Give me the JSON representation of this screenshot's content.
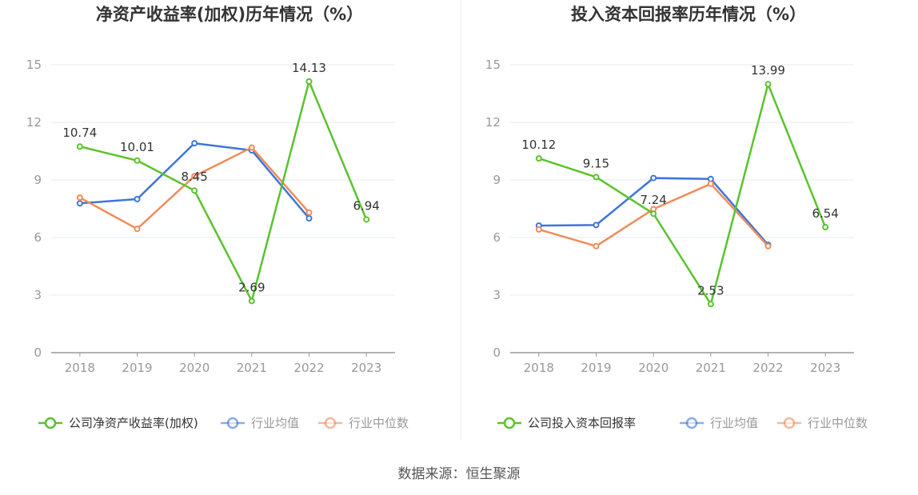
{
  "chart_data": [
    {
      "type": "line",
      "title": "净资产收益率(加权)历年情况（%）",
      "categories": [
        "2018",
        "2019",
        "2020",
        "2021",
        "2022",
        "2023"
      ],
      "ylim": [
        0,
        15
      ],
      "yticks": [
        0,
        3,
        6,
        9,
        12,
        15
      ],
      "grid": true,
      "legend_position": "bottom",
      "series": [
        {
          "name": "公司净资产收益率(加权)",
          "color": "#5ac32e",
          "values": [
            10.74,
            10.01,
            8.45,
            2.69,
            14.13,
            6.94
          ],
          "labels": [
            "10.74",
            "10.01",
            "8.45",
            "2.69",
            "14.13",
            "6.94"
          ]
        },
        {
          "name": "行业均值",
          "color": "#3e75db",
          "values": [
            7.78,
            8.0,
            10.91,
            10.54,
            7.0,
            null
          ]
        },
        {
          "name": "行业中位数",
          "color": "#f08c5a",
          "values": [
            8.08,
            6.45,
            9.2,
            10.69,
            7.3,
            null
          ]
        }
      ]
    },
    {
      "type": "line",
      "title": "投入资本回报率历年情况（%）",
      "categories": [
        "2018",
        "2019",
        "2020",
        "2021",
        "2022",
        "2023"
      ],
      "ylim": [
        0,
        15
      ],
      "yticks": [
        0,
        3,
        6,
        9,
        12,
        15
      ],
      "grid": true,
      "legend_position": "bottom",
      "series": [
        {
          "name": "公司投入资本回报率",
          "color": "#5ac32e",
          "values": [
            10.12,
            9.15,
            7.24,
            2.53,
            13.99,
            6.54
          ],
          "labels": [
            "10.12",
            "9.15",
            "7.24",
            "2.53",
            "13.99",
            "6.54"
          ]
        },
        {
          "name": "行业均值",
          "color": "#3e75db",
          "values": [
            6.62,
            6.65,
            9.1,
            9.05,
            5.62,
            null
          ]
        },
        {
          "name": "行业中位数",
          "color": "#f08c5a",
          "values": [
            6.42,
            5.55,
            7.48,
            8.8,
            5.55,
            null
          ]
        }
      ]
    }
  ],
  "footer": {
    "source": "数据来源：恒生聚源"
  }
}
